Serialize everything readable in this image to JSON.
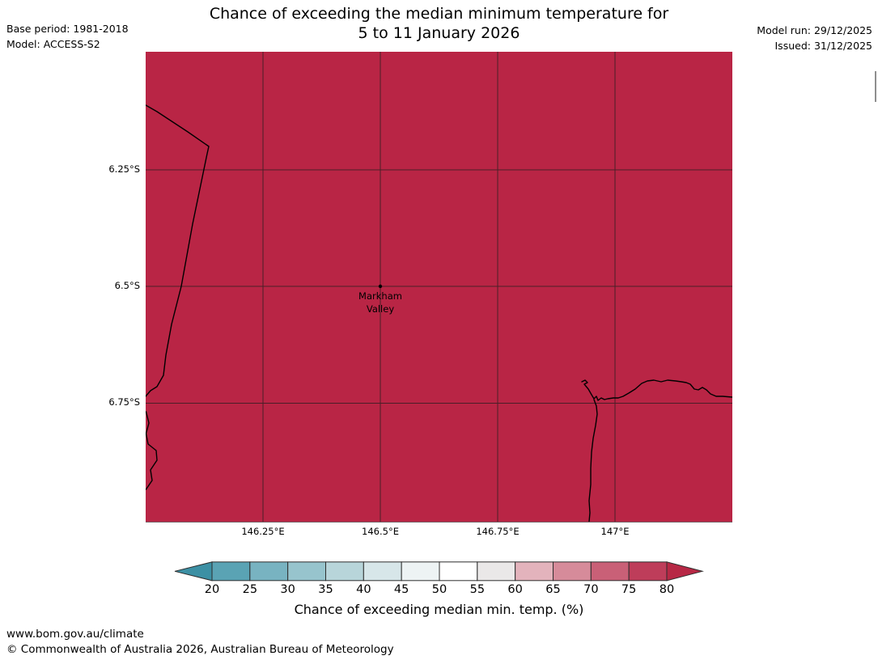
{
  "meta": {
    "base_period": "Base period: 1981-2018",
    "model": "Model: ACCESS-S2",
    "model_run": "Model run: 29/12/2025",
    "issued": "Issued: 31/12/2025"
  },
  "title": {
    "line1": "Chance of exceeding the median minimum temperature for",
    "line2": "5 to 11 January 2026"
  },
  "map": {
    "fill": "#b92545",
    "coastline": "#000000",
    "gridline": "#1c1c1c",
    "location": {
      "line1": "Markham",
      "line2": "Valley"
    },
    "lat_ticks": [
      "6.25°S",
      "6.5°S",
      "6.75°S"
    ],
    "lon_ticks": [
      "146.25°E",
      "146.5°E",
      "146.75°E",
      "147°E"
    ]
  },
  "colorbar": {
    "label": "Chance of exceeding median min. temp. (%)",
    "ticks": [
      "20",
      "25",
      "30",
      "35",
      "40",
      "45",
      "50",
      "55",
      "60",
      "65",
      "70",
      "75",
      "80"
    ],
    "segment_colors": [
      "#5aa3b4",
      "#78b3c1",
      "#97c4cd",
      "#b8d5da",
      "#d7e6e9",
      "#edf3f4",
      "#ffffff",
      "#eae8e8",
      "#e3b3bc",
      "#d68b9a",
      "#c96077",
      "#be3d5a"
    ],
    "arrow_left_color": "#3c90a4",
    "arrow_right_color": "#b72845",
    "outline_color": "#2e2e2e"
  },
  "footer": {
    "url": "www.bom.gov.au/climate",
    "copyright": "© Commonwealth of Australia 2026, Australian Bureau of Meteorology"
  },
  "chart_data": {
    "type": "heatmap",
    "title": "Chance of exceeding the median minimum temperature for 5 to 11 January 2026",
    "legend_label": "Chance of exceeding median min. temp. (%)",
    "colorbar_ticks": [
      20,
      25,
      30,
      35,
      40,
      45,
      50,
      55,
      60,
      65,
      70,
      75,
      80
    ],
    "colorbar_range_shown": [
      20,
      80
    ],
    "map_extent": {
      "lon_min": 146.0,
      "lon_max": 147.25,
      "lat_min": -7.0,
      "lat_max": -6.0
    },
    "lat_gridlines": [
      -6.25,
      -6.5,
      -6.75
    ],
    "lon_gridlines": [
      146.25,
      146.5,
      146.75,
      147.0
    ],
    "marker": {
      "name": "Markham Valley",
      "lon": 146.5,
      "lat": -6.5
    },
    "region_value": "entire visible region exceeds 80% (solid crimson fill)"
  }
}
